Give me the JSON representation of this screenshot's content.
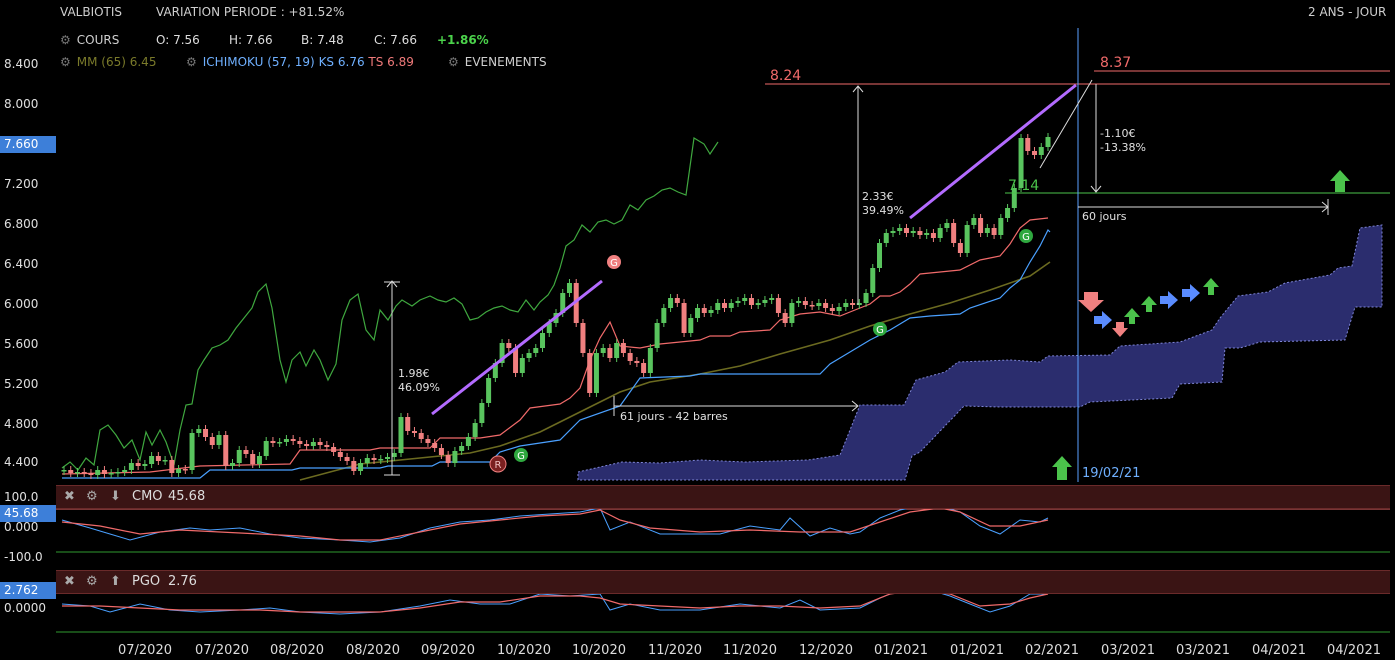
{
  "header": {
    "ticker": "VALBIOTIS",
    "variation": "VARIATION PERIODE : +81.52%",
    "period": "2 ANS - JOUR",
    "cours_label": "COURS",
    "o": "O: 7.56",
    "h": "H: 7.66",
    "b": "B: 7.48",
    "c": "C: 7.66",
    "change": "+1.86%",
    "mm": "MM (65) 6.45",
    "ichimoku": "ICHIMOKU (57, 19)",
    "ks": "KS 6.76",
    "ts": "TS 6.89",
    "events": "EVENEMENTS"
  },
  "chart_data": {
    "type": "candlestick",
    "yticks": [
      "8.400",
      "8.000",
      "7.600",
      "7.200",
      "6.800",
      "6.400",
      "6.000",
      "5.600",
      "5.200",
      "4.800",
      "4.400"
    ],
    "last_price_label": "7.660",
    "xticks": [
      "07/2020",
      "07/2020",
      "08/2020",
      "08/2020",
      "09/2020",
      "10/2020",
      "10/2020",
      "11/2020",
      "11/2020",
      "12/2020",
      "01/2021",
      "01/2021",
      "02/2021",
      "03/2021",
      "03/2021",
      "04/2021",
      "04/2021"
    ],
    "candles": [
      [
        4.32,
        4.33
      ],
      [
        4.33,
        4.3
      ],
      [
        4.3,
        4.31
      ],
      [
        4.31,
        4.3
      ],
      [
        4.3,
        4.28
      ],
      [
        4.28,
        4.33
      ],
      [
        4.33,
        4.29
      ],
      [
        4.29,
        4.3
      ],
      [
        4.3,
        4.31
      ],
      [
        4.31,
        4.33
      ],
      [
        4.33,
        4.4
      ],
      [
        4.4,
        4.37
      ],
      [
        4.37,
        4.39
      ],
      [
        4.39,
        4.47
      ],
      [
        4.47,
        4.42
      ],
      [
        4.42,
        4.43
      ],
      [
        4.43,
        4.3
      ],
      [
        4.3,
        4.34
      ],
      [
        4.34,
        4.33
      ],
      [
        4.33,
        4.7
      ],
      [
        4.7,
        4.74
      ],
      [
        4.74,
        4.66
      ],
      [
        4.66,
        4.58
      ],
      [
        4.58,
        4.68
      ],
      [
        4.68,
        4.37
      ],
      [
        4.37,
        4.4
      ],
      [
        4.4,
        4.53
      ],
      [
        4.53,
        4.49
      ],
      [
        4.49,
        4.39
      ],
      [
        4.39,
        4.47
      ],
      [
        4.47,
        4.62
      ],
      [
        4.62,
        4.6
      ],
      [
        4.6,
        4.61
      ],
      [
        4.61,
        4.64
      ],
      [
        4.64,
        4.62
      ],
      [
        4.62,
        4.59
      ],
      [
        4.59,
        4.57
      ],
      [
        4.57,
        4.61
      ],
      [
        4.61,
        4.58
      ],
      [
        4.58,
        4.56
      ],
      [
        4.56,
        4.51
      ],
      [
        4.51,
        4.46
      ],
      [
        4.46,
        4.42
      ],
      [
        4.42,
        4.32
      ],
      [
        4.32,
        4.4
      ],
      [
        4.4,
        4.45
      ],
      [
        4.45,
        4.43
      ],
      [
        4.43,
        4.44
      ],
      [
        4.44,
        4.46
      ],
      [
        4.46,
        4.5
      ],
      [
        4.5,
        4.86
      ],
      [
        4.86,
        4.72
      ],
      [
        4.72,
        4.7
      ],
      [
        4.7,
        4.64
      ],
      [
        4.64,
        4.6
      ],
      [
        4.6,
        4.55
      ],
      [
        4.55,
        4.48
      ],
      [
        4.48,
        4.4
      ],
      [
        4.4,
        4.52
      ],
      [
        4.52,
        4.57
      ],
      [
        4.57,
        4.66
      ],
      [
        4.66,
        4.8
      ],
      [
        4.8,
        5.0
      ],
      [
        5.0,
        5.25
      ],
      [
        5.25,
        5.4
      ],
      [
        5.4,
        5.6
      ],
      [
        5.6,
        5.55
      ],
      [
        5.55,
        5.3
      ],
      [
        5.3,
        5.45
      ],
      [
        5.45,
        5.5
      ],
      [
        5.5,
        5.55
      ],
      [
        5.55,
        5.7
      ],
      [
        5.7,
        5.8
      ],
      [
        5.8,
        5.9
      ],
      [
        5.9,
        6.1
      ],
      [
        6.1,
        6.2
      ],
      [
        6.2,
        5.8
      ],
      [
        5.8,
        5.5
      ],
      [
        5.5,
        5.1
      ],
      [
        5.1,
        5.5
      ],
      [
        5.5,
        5.55
      ],
      [
        5.55,
        5.45
      ],
      [
        5.45,
        5.6
      ],
      [
        5.6,
        5.5
      ],
      [
        5.5,
        5.42
      ],
      [
        5.42,
        5.4
      ],
      [
        5.4,
        5.3
      ],
      [
        5.3,
        5.55
      ],
      [
        5.55,
        5.8
      ],
      [
        5.8,
        5.95
      ],
      [
        5.95,
        6.05
      ],
      [
        6.05,
        6.0
      ],
      [
        6.0,
        5.7
      ],
      [
        5.7,
        5.85
      ],
      [
        5.85,
        5.95
      ],
      [
        5.95,
        5.9
      ],
      [
        5.9,
        5.93
      ],
      [
        5.93,
        6.0
      ],
      [
        6.0,
        5.95
      ],
      [
        5.95,
        6.0
      ],
      [
        6.0,
        6.02
      ],
      [
        6.02,
        6.05
      ],
      [
        6.05,
        5.98
      ],
      [
        5.98,
        6.0
      ],
      [
        6.0,
        6.03
      ],
      [
        6.03,
        6.05
      ],
      [
        6.05,
        5.9
      ],
      [
        5.9,
        5.8
      ],
      [
        5.8,
        6.0
      ],
      [
        6.0,
        6.02
      ],
      [
        6.02,
        5.98
      ],
      [
        5.98,
        5.97
      ],
      [
        5.97,
        6.0
      ],
      [
        6.0,
        5.95
      ],
      [
        5.95,
        5.92
      ],
      [
        5.92,
        5.96
      ],
      [
        5.96,
        6.0
      ],
      [
        6.0,
        5.98
      ],
      [
        5.98,
        6.0
      ],
      [
        6.0,
        6.1
      ],
      [
        6.1,
        6.35
      ],
      [
        6.35,
        6.6
      ],
      [
        6.6,
        6.7
      ],
      [
        6.7,
        6.72
      ],
      [
        6.72,
        6.75
      ],
      [
        6.75,
        6.7
      ],
      [
        6.7,
        6.72
      ],
      [
        6.72,
        6.68
      ],
      [
        6.68,
        6.7
      ],
      [
        6.7,
        6.65
      ],
      [
        6.65,
        6.75
      ],
      [
        6.75,
        6.8
      ],
      [
        6.8,
        6.6
      ],
      [
        6.6,
        6.5
      ],
      [
        6.5,
        6.78
      ],
      [
        6.78,
        6.85
      ],
      [
        6.85,
        6.7
      ],
      [
        6.7,
        6.75
      ],
      [
        6.75,
        6.68
      ],
      [
        6.68,
        6.85
      ],
      [
        6.85,
        6.95
      ],
      [
        6.95,
        7.15
      ],
      [
        7.15,
        7.65
      ],
      [
        7.65,
        7.52
      ],
      [
        7.52,
        7.48
      ],
      [
        7.48,
        7.56
      ],
      [
        7.56,
        7.66
      ]
    ],
    "annotations": {
      "left_target": "8.24",
      "right_target": "8.37",
      "level_714": "7.14",
      "move1": [
        "1.98€",
        "46.09%"
      ],
      "move2": [
        "2.33€",
        "39.49%"
      ],
      "move3": [
        "-1.10€",
        "-13.38%"
      ],
      "span1": "61 jours - 42 barres",
      "span2": "60 jours",
      "date": "19/02/21",
      "sig_r": "R",
      "sig_g": "G"
    },
    "indicators": {
      "cmo": {
        "title": "CMO",
        "value": "45.68",
        "yticks": [
          "100.0",
          "0.000",
          "-100.0"
        ],
        "badge": "45.68"
      },
      "pgo": {
        "title": "PGO",
        "value": "2.76",
        "yticks": [
          "0.0000"
        ],
        "badge": "2.762"
      }
    }
  },
  "colors": {
    "up": "#59c45e",
    "down": "#f08080",
    "kijun": "#4aa0ff",
    "tenkan": "#f06a6a",
    "chikou": "#3fa83f",
    "mm": "#6b6a20",
    "cloud": "#2b2d6e",
    "target": "#f06a6a",
    "trend": "#b36bff"
  },
  "icons": [
    "gear-icon",
    "close-icon",
    "arrow-up-icon",
    "arrow-down-icon"
  ]
}
